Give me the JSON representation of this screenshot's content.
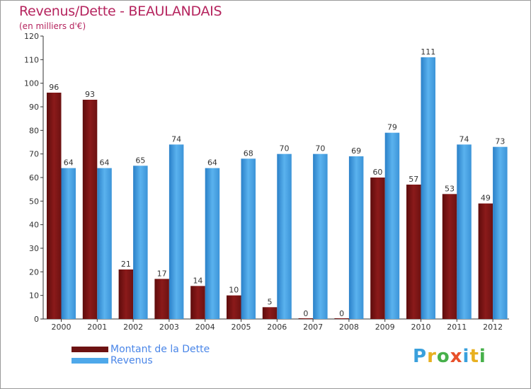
{
  "chart_data": {
    "type": "bar",
    "title": "Revenus/Dette - BEAULANDAIS",
    "subtitle": "(en milliers d'€)",
    "categories": [
      "2000",
      "2001",
      "2002",
      "2003",
      "2004",
      "2005",
      "2006",
      "2007",
      "2008",
      "2009",
      "2010",
      "2011",
      "2012"
    ],
    "series": [
      {
        "name": "Montant de la Dette",
        "color": "#8b1a1a",
        "values": [
          96,
          93,
          21,
          17,
          14,
          10,
          5,
          0,
          0,
          60,
          57,
          53,
          49
        ]
      },
      {
        "name": "Revenus",
        "color": "#4ea8ea",
        "values": [
          64,
          64,
          65,
          74,
          64,
          68,
          70,
          70,
          69,
          79,
          111,
          74,
          73
        ]
      }
    ],
    "ylim": [
      0,
      120
    ],
    "yticks": [
      0,
      10,
      20,
      30,
      40,
      50,
      60,
      70,
      80,
      90,
      100,
      110,
      120
    ],
    "grid": false,
    "legend_position": "bottom-left"
  },
  "brand": {
    "letters": [
      {
        "char": "P",
        "color": "#3aa0dc"
      },
      {
        "char": "r",
        "color": "#e8b020"
      },
      {
        "char": "o",
        "color": "#46b04a"
      },
      {
        "char": "x",
        "color": "#e8502a"
      },
      {
        "char": "i",
        "color": "#3aa0dc"
      },
      {
        "char": "t",
        "color": "#e8b020"
      },
      {
        "char": "i",
        "color": "#46b04a"
      }
    ]
  }
}
